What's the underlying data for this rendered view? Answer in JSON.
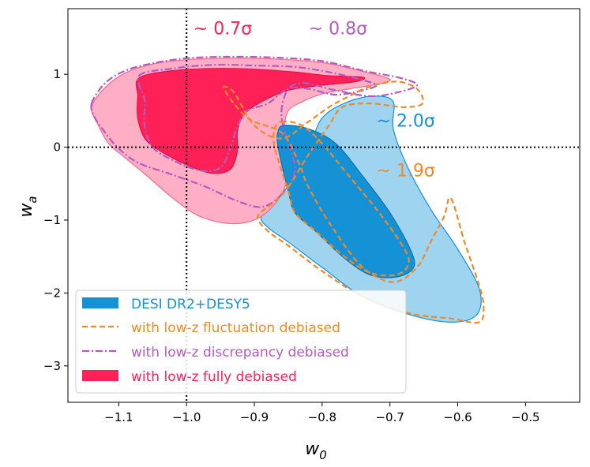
{
  "chart_data": {
    "type": "contour",
    "xlabel": "w",
    "xlabel_sub": "0",
    "ylabel": "w",
    "ylabel_sub": "a",
    "xlim": [
      -1.175,
      -0.42
    ],
    "ylim": [
      -3.5,
      1.9
    ],
    "xticks": [
      -1.1,
      -1.0,
      -0.9,
      -0.8,
      -0.7,
      -0.6,
      -0.5
    ],
    "xtick_labels": [
      "−1.1",
      "−1.0",
      "−0.9",
      "−0.8",
      "−0.7",
      "−0.6",
      "−0.5"
    ],
    "yticks": [
      -3,
      -2,
      -1,
      0,
      1
    ],
    "ytick_labels": [
      "−3",
      "−2",
      "−1",
      "0",
      "1"
    ],
    "reference_lines": {
      "w0": -1.0,
      "wa": 0.0,
      "style": "dotted",
      "color": "#000000"
    },
    "colors": {
      "desi": "#1591d6",
      "desi_light": "#9fd4f0",
      "fluct": "#ef8a2a",
      "discr": "#b35bc0",
      "full": "#ff2058",
      "full_light": "#ffa8c0"
    },
    "series": [
      {
        "name": "DESI DR2+DESY5",
        "style": "filled",
        "contours": [
          {
            "level": "95%",
            "points": [
              [
                -0.845,
                -0.48
              ],
              [
                -0.82,
                -0.05
              ],
              [
                -0.8,
                0.4
              ],
              [
                -0.76,
                0.63
              ],
              [
                -0.72,
                0.7
              ],
              [
                -0.695,
                0.62
              ],
              [
                -0.695,
                0.25
              ],
              [
                -0.675,
                -0.25
              ],
              [
                -0.64,
                -0.85
              ],
              [
                -0.6,
                -1.4
              ],
              [
                -0.568,
                -1.95
              ],
              [
                -0.572,
                -2.3
              ],
              [
                -0.61,
                -2.4
              ],
              [
                -0.67,
                -2.3
              ],
              [
                -0.74,
                -2.05
              ],
              [
                -0.8,
                -1.65
              ],
              [
                -0.85,
                -1.3
              ],
              [
                -0.88,
                -1.1
              ],
              [
                -0.89,
                -0.95
              ],
              [
                -0.87,
                -0.72
              ]
            ]
          },
          {
            "level": "68%",
            "points": [
              [
                -0.855,
                0.3
              ],
              [
                -0.82,
                0.25
              ],
              [
                -0.78,
                0.05
              ],
              [
                -0.74,
                -0.4
              ],
              [
                -0.7,
                -0.9
              ],
              [
                -0.67,
                -1.4
              ],
              [
                -0.665,
                -1.65
              ],
              [
                -0.69,
                -1.78
              ],
              [
                -0.73,
                -1.75
              ],
              [
                -0.77,
                -1.5
              ],
              [
                -0.81,
                -1.15
              ],
              [
                -0.84,
                -0.9
              ],
              [
                -0.85,
                -0.6
              ],
              [
                -0.865,
                0.0
              ],
              [
                -0.865,
                0.22
              ]
            ]
          }
        ]
      },
      {
        "name": "with low-z fluctuation debiased",
        "style": "dashed",
        "contours": [
          {
            "level": "95%",
            "points": [
              [
                -0.85,
                -0.55
              ],
              [
                -0.82,
                -0.1
              ],
              [
                -0.79,
                0.3
              ],
              [
                -0.77,
                0.55
              ],
              [
                -0.73,
                0.6
              ],
              [
                -0.68,
                0.55
              ],
              [
                -0.652,
                0.6
              ],
              [
                -0.66,
                0.8
              ],
              [
                -0.69,
                0.9
              ],
              [
                -0.73,
                0.83
              ],
              [
                -0.76,
                0.7
              ],
              [
                -0.79,
                0.55
              ],
              [
                -0.82,
                0.35
              ],
              [
                -0.86,
                0.12
              ],
              [
                -0.9,
                0.3
              ],
              [
                -0.93,
                0.75
              ],
              [
                -0.945,
                0.8
              ],
              [
                -0.91,
                0.4
              ],
              [
                -0.86,
                0.2
              ],
              [
                -0.835,
                -0.2
              ],
              [
                -0.82,
                -0.55
              ],
              [
                -0.785,
                -1.1
              ],
              [
                -0.74,
                -1.65
              ],
              [
                -0.695,
                -1.85
              ],
              [
                -0.66,
                -1.65
              ],
              [
                -0.64,
                -1.3
              ],
              [
                -0.62,
                -0.95
              ],
              [
                -0.61,
                -0.7
              ],
              [
                -0.59,
                -1.3
              ],
              [
                -0.57,
                -1.85
              ],
              [
                -0.562,
                -2.15
              ],
              [
                -0.568,
                -2.4
              ],
              [
                -0.61,
                -2.35
              ],
              [
                -0.67,
                -2.28
              ],
              [
                -0.74,
                -2.05
              ],
              [
                -0.8,
                -1.7
              ],
              [
                -0.85,
                -1.35
              ],
              [
                -0.88,
                -1.15
              ],
              [
                -0.895,
                -0.95
              ],
              [
                -0.87,
                -0.75
              ]
            ]
          },
          {
            "level": "68%",
            "points": [
              [
                -0.86,
                0.35
              ],
              [
                -0.83,
                0.3
              ],
              [
                -0.8,
                0.05
              ],
              [
                -0.76,
                -0.4
              ],
              [
                -0.72,
                -0.85
              ],
              [
                -0.685,
                -1.3
              ],
              [
                -0.672,
                -1.58
              ],
              [
                -0.69,
                -1.75
              ],
              [
                -0.73,
                -1.72
              ],
              [
                -0.77,
                -1.48
              ],
              [
                -0.81,
                -1.15
              ],
              [
                -0.84,
                -0.9
              ],
              [
                -0.85,
                -0.6
              ],
              [
                -0.87,
                0.0
              ],
              [
                -0.87,
                0.25
              ]
            ]
          }
        ]
      },
      {
        "name": "with low-z discrepancy debiased",
        "style": "dashdot",
        "contours": [
          {
            "level": "95%",
            "points": [
              [
                -1.14,
                0.6
              ],
              [
                -1.12,
                0.88
              ],
              [
                -1.09,
                1.05
              ],
              [
                -1.05,
                1.15
              ],
              [
                -1.0,
                1.22
              ],
              [
                -0.94,
                1.24
              ],
              [
                -0.87,
                1.23
              ],
              [
                -0.8,
                1.18
              ],
              [
                -0.74,
                1.05
              ],
              [
                -0.685,
                0.95
              ],
              [
                -0.66,
                0.85
              ],
              [
                -0.69,
                0.75
              ],
              [
                -0.73,
                0.7
              ],
              [
                -0.78,
                0.78
              ],
              [
                -0.81,
                0.85
              ],
              [
                -0.83,
                0.88
              ],
              [
                -0.85,
                0.8
              ],
              [
                -0.86,
                0.5
              ],
              [
                -0.855,
                0.2
              ],
              [
                -0.84,
                -0.3
              ],
              [
                -0.86,
                -0.65
              ],
              [
                -0.89,
                -0.82
              ],
              [
                -0.93,
                -0.72
              ],
              [
                -0.97,
                -0.55
              ],
              [
                -1.02,
                -0.38
              ],
              [
                -1.07,
                -0.22
              ],
              [
                -1.1,
                -0.02
              ],
              [
                -1.12,
                0.2
              ],
              [
                -1.135,
                0.4
              ]
            ]
          },
          {
            "level": "68%",
            "points": [
              [
                -1.07,
                0.98
              ],
              [
                -1.02,
                1.08
              ],
              [
                -0.96,
                1.13
              ],
              [
                -0.9,
                1.12
              ],
              [
                -0.84,
                1.1
              ],
              [
                -0.79,
                1.03
              ],
              [
                -0.74,
                0.92
              ],
              [
                -0.72,
                0.85
              ],
              [
                -0.74,
                0.78
              ],
              [
                -0.78,
                0.72
              ],
              [
                -0.82,
                0.8
              ],
              [
                -0.85,
                0.8
              ],
              [
                -0.88,
                0.6
              ],
              [
                -0.91,
                0.5
              ],
              [
                -0.925,
                0.28
              ],
              [
                -0.935,
                0.0
              ],
              [
                -0.95,
                -0.28
              ],
              [
                -0.98,
                -0.32
              ],
              [
                -1.02,
                -0.18
              ],
              [
                -1.05,
                0.0
              ],
              [
                -1.062,
                0.3
              ],
              [
                -1.062,
                0.65
              ]
            ]
          }
        ]
      },
      {
        "name": "with low-z fully debiased",
        "style": "filled",
        "contours": [
          {
            "level": "95%",
            "points": [
              [
                -1.14,
                0.55
              ],
              [
                -1.12,
                0.82
              ],
              [
                -1.09,
                1.02
              ],
              [
                -1.05,
                1.14
              ],
              [
                -1.0,
                1.2
              ],
              [
                -0.94,
                1.22
              ],
              [
                -0.87,
                1.21
              ],
              [
                -0.8,
                1.16
              ],
              [
                -0.74,
                1.04
              ],
              [
                -0.7,
                0.93
              ],
              [
                -0.72,
                0.86
              ],
              [
                -0.76,
                0.8
              ],
              [
                -0.8,
                0.73
              ],
              [
                -0.83,
                0.62
              ],
              [
                -0.85,
                0.5
              ],
              [
                -0.856,
                0.25
              ],
              [
                -0.855,
                0.0
              ],
              [
                -0.85,
                -0.3
              ],
              [
                -0.86,
                -0.65
              ],
              [
                -0.89,
                -0.95
              ],
              [
                -0.93,
                -1.05
              ],
              [
                -0.98,
                -0.95
              ],
              [
                -1.02,
                -0.7
              ],
              [
                -1.06,
                -0.38
              ],
              [
                -1.09,
                -0.15
              ],
              [
                -1.115,
                0.05
              ],
              [
                -1.13,
                0.3
              ]
            ]
          },
          {
            "level": "68%",
            "points": [
              [
                -1.07,
                0.95
              ],
              [
                -1.02,
                1.05
              ],
              [
                -0.96,
                1.08
              ],
              [
                -0.9,
                1.07
              ],
              [
                -0.84,
                1.03
              ],
              [
                -0.79,
                0.98
              ],
              [
                -0.74,
                0.96
              ],
              [
                -0.75,
                0.9
              ],
              [
                -0.8,
                0.85
              ],
              [
                -0.85,
                0.78
              ],
              [
                -0.89,
                0.62
              ],
              [
                -0.915,
                0.45
              ],
              [
                -0.925,
                0.22
              ],
              [
                -0.925,
                -0.05
              ],
              [
                -0.935,
                -0.3
              ],
              [
                -0.96,
                -0.36
              ],
              [
                -0.99,
                -0.28
              ],
              [
                -1.03,
                -0.1
              ],
              [
                -1.06,
                0.1
              ],
              [
                -1.072,
                0.4
              ],
              [
                -1.072,
                0.7
              ]
            ]
          }
        ]
      }
    ],
    "annotations": [
      {
        "text": "~ 0.7σ",
        "x": -0.99,
        "y": 1.55,
        "color": "#ff2058"
      },
      {
        "text": "~ 0.8σ",
        "x": -0.82,
        "y": 1.55,
        "color": "#b35bc0"
      },
      {
        "text": "~ 2.0σ",
        "x": -0.72,
        "y": 0.28,
        "color": "#1591d6"
      },
      {
        "text": "~ 1.9σ",
        "x": -0.72,
        "y": -0.4,
        "color": "#ef8a2a"
      }
    ],
    "legend": {
      "position": "lower-left",
      "entries": [
        {
          "label": "DESI DR2+DESY5",
          "color": "#1591d6",
          "handle": "patch"
        },
        {
          "label": "with low-z fluctuation debiased",
          "color": "#ef8a2a",
          "handle": "dashed"
        },
        {
          "label": "with low-z discrepancy debiased",
          "color": "#b35bc0",
          "handle": "dashdot"
        },
        {
          "label": "with low-z fully debiased",
          "color": "#ff2058",
          "handle": "patch"
        }
      ]
    }
  }
}
